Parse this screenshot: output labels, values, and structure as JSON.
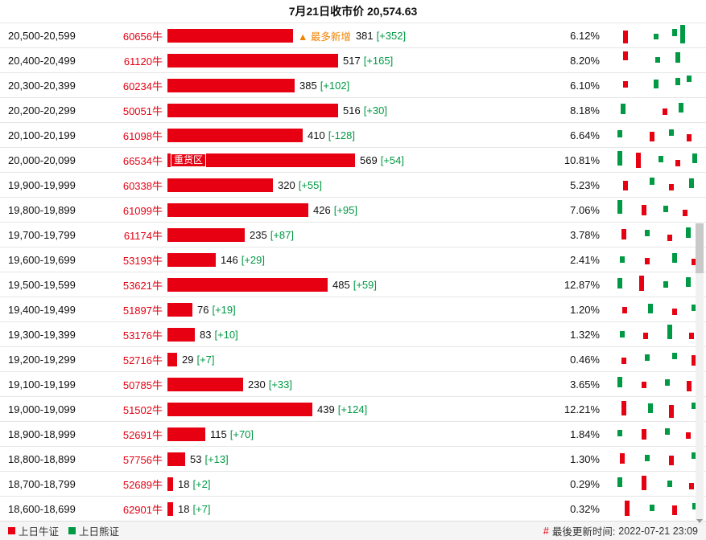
{
  "title": "7月21日收市价 20,574.63",
  "colors": {
    "bull_red": "#e60012",
    "bear_green": "#009944",
    "highlight_orange": "#f08300"
  },
  "legend": {
    "bull": "上日牛证",
    "bear": "上日熊证"
  },
  "footer": {
    "hash": "#",
    "updated_label": "最後更新时间:",
    "updated_time": "2022-07-21 23:09"
  },
  "chart_data": {
    "type": "bar",
    "orientation": "horizontal",
    "title": "7月21日收市价 20,574.63",
    "max_value": 569,
    "bar_color": "#e60012",
    "rows": [
      {
        "range": "20,500-20,599",
        "count": "60656牛",
        "value": 381,
        "change": "[+352]",
        "pct": "6.12%",
        "tag": "▲ 最多新增",
        "candles": [
          [
            13,
            "r",
            8,
            16
          ],
          [
            45,
            "g",
            12,
            7
          ],
          [
            64,
            "g",
            6,
            9
          ],
          [
            73,
            "g",
            1,
            23
          ]
        ]
      },
      {
        "range": "20,400-20,499",
        "count": "61120牛",
        "value": 517,
        "change": "[+165]",
        "pct": "8.20%",
        "candles": [
          [
            13,
            "r",
            3,
            11
          ],
          [
            47,
            "g",
            10,
            7
          ],
          [
            68,
            "g",
            4,
            13
          ]
        ]
      },
      {
        "range": "20,300-20,399",
        "count": "60234牛",
        "value": 385,
        "change": "[+102]",
        "pct": "6.10%",
        "candles": [
          [
            13,
            "r",
            9,
            8
          ],
          [
            45,
            "g",
            7,
            11
          ],
          [
            68,
            "g",
            5,
            9
          ],
          [
            80,
            "g",
            2,
            8
          ]
        ]
      },
      {
        "range": "20,200-20,299",
        "count": "50051牛",
        "value": 516,
        "change": "[+30]",
        "pct": "8.18%",
        "candles": [
          [
            10,
            "g",
            6,
            13
          ],
          [
            54,
            "r",
            12,
            8
          ],
          [
            71,
            "g",
            5,
            12
          ]
        ]
      },
      {
        "range": "20,100-20,199",
        "count": "61098牛",
        "value": 410,
        "change": "[-128]",
        "pct": "6.64%",
        "candles": [
          [
            7,
            "g",
            8,
            9
          ],
          [
            41,
            "r",
            10,
            12
          ],
          [
            61,
            "g",
            7,
            8
          ],
          [
            80,
            "r",
            13,
            9
          ]
        ]
      },
      {
        "range": "20,000-20,099",
        "count": "66534牛",
        "value": 569,
        "change": "[+54]",
        "pct": "10.81%",
        "zone": "重货区",
        "candles": [
          [
            7,
            "g",
            3,
            18
          ],
          [
            26,
            "r",
            5,
            19
          ],
          [
            50,
            "g",
            9,
            8
          ],
          [
            68,
            "r",
            14,
            8
          ],
          [
            86,
            "g",
            6,
            12
          ]
        ]
      },
      {
        "range": "19,900-19,999",
        "count": "60338牛",
        "value": 320,
        "change": "[+55]",
        "pct": "5.23%",
        "candles": [
          [
            13,
            "r",
            9,
            12
          ],
          [
            41,
            "g",
            5,
            9
          ],
          [
            61,
            "r",
            13,
            8
          ],
          [
            82,
            "g",
            6,
            12
          ]
        ]
      },
      {
        "range": "19,800-19,899",
        "count": "61099牛",
        "value": 426,
        "change": "[+95]",
        "pct": "7.06%",
        "candles": [
          [
            7,
            "g",
            2,
            17
          ],
          [
            32,
            "r",
            8,
            13
          ],
          [
            55,
            "g",
            9,
            8
          ],
          [
            75,
            "r",
            14,
            8
          ]
        ]
      },
      {
        "range": "19,700-19,799",
        "count": "61174牛",
        "value": 235,
        "change": "[+87]",
        "pct": "3.78%",
        "candles": [
          [
            11,
            "r",
            7,
            13
          ],
          [
            36,
            "g",
            8,
            8
          ],
          [
            59,
            "r",
            14,
            8
          ],
          [
            79,
            "g",
            5,
            13
          ]
        ]
      },
      {
        "range": "19,600-19,699",
        "count": "53193牛",
        "value": 146,
        "change": "[+29]",
        "pct": "2.41%",
        "candles": [
          [
            9,
            "g",
            10,
            8
          ],
          [
            36,
            "r",
            12,
            8
          ],
          [
            64,
            "g",
            6,
            12
          ],
          [
            85,
            "r",
            13,
            8
          ]
        ]
      },
      {
        "range": "19,500-19,599",
        "count": "53621牛",
        "value": 485,
        "change": "[+59]",
        "pct": "12.87%",
        "candles": [
          [
            7,
            "g",
            6,
            13
          ],
          [
            30,
            "r",
            3,
            19
          ],
          [
            55,
            "g",
            10,
            8
          ],
          [
            79,
            "g",
            5,
            12
          ]
        ]
      },
      {
        "range": "19,400-19,499",
        "count": "51897牛",
        "value": 76,
        "change": "[+19]",
        "pct": "1.20%",
        "candles": [
          [
            12,
            "r",
            11,
            8
          ],
          [
            39,
            "g",
            7,
            12
          ],
          [
            64,
            "r",
            13,
            8
          ],
          [
            85,
            "g",
            8,
            8
          ]
        ]
      },
      {
        "range": "19,300-19,399",
        "count": "53176牛",
        "value": 83,
        "change": "[+10]",
        "pct": "1.32%",
        "candles": [
          [
            9,
            "g",
            10,
            8
          ],
          [
            34,
            "r",
            12,
            8
          ],
          [
            59,
            "g",
            2,
            18
          ],
          [
            82,
            "r",
            12,
            8
          ]
        ]
      },
      {
        "range": "19,200-19,299",
        "count": "52716牛",
        "value": 29,
        "change": "[+7]",
        "pct": "0.46%",
        "candles": [
          [
            11,
            "r",
            12,
            8
          ],
          [
            36,
            "g",
            8,
            8
          ],
          [
            64,
            "g",
            6,
            8
          ],
          [
            85,
            "r",
            9,
            13
          ]
        ]
      },
      {
        "range": "19,100-19,199",
        "count": "50785牛",
        "value": 230,
        "change": "[+33]",
        "pct": "3.65%",
        "candles": [
          [
            7,
            "g",
            5,
            13
          ],
          [
            32,
            "r",
            11,
            8
          ],
          [
            57,
            "g",
            8,
            8
          ],
          [
            80,
            "r",
            10,
            13
          ]
        ]
      },
      {
        "range": "19,000-19,099",
        "count": "51502牛",
        "value": 439,
        "change": "[+124]",
        "pct": "12.21%",
        "candles": [
          [
            11,
            "r",
            4,
            18
          ],
          [
            39,
            "g",
            7,
            12
          ],
          [
            61,
            "r",
            9,
            16
          ],
          [
            85,
            "g",
            6,
            8
          ]
        ]
      },
      {
        "range": "18,900-18,999",
        "count": "52691牛",
        "value": 115,
        "change": "[+70]",
        "pct": "1.84%",
        "candles": [
          [
            7,
            "g",
            9,
            8
          ],
          [
            32,
            "r",
            8,
            13
          ],
          [
            57,
            "g",
            7,
            8
          ],
          [
            79,
            "r",
            12,
            8
          ]
        ]
      },
      {
        "range": "18,800-18,899",
        "count": "57756牛",
        "value": 53,
        "change": "[+13]",
        "pct": "1.30%",
        "candles": [
          [
            9,
            "r",
            7,
            13
          ],
          [
            36,
            "g",
            9,
            8
          ],
          [
            61,
            "r",
            10,
            12
          ],
          [
            85,
            "g",
            6,
            8
          ]
        ]
      },
      {
        "range": "18,700-18,799",
        "count": "52689牛",
        "value": 18,
        "change": "[+2]",
        "pct": "0.29%",
        "candles": [
          [
            7,
            "g",
            6,
            12
          ],
          [
            32,
            "r",
            4,
            18
          ],
          [
            59,
            "g",
            10,
            8
          ],
          [
            82,
            "r",
            13,
            8
          ]
        ]
      },
      {
        "range": "18,600-18,699",
        "count": "62901牛",
        "value": 18,
        "change": "[+7]",
        "pct": "0.32%",
        "candles": [
          [
            14,
            "r",
            4,
            19
          ],
          [
            41,
            "g",
            9,
            8
          ],
          [
            64,
            "r",
            10,
            12
          ],
          [
            86,
            "g",
            7,
            8
          ]
        ]
      }
    ]
  }
}
